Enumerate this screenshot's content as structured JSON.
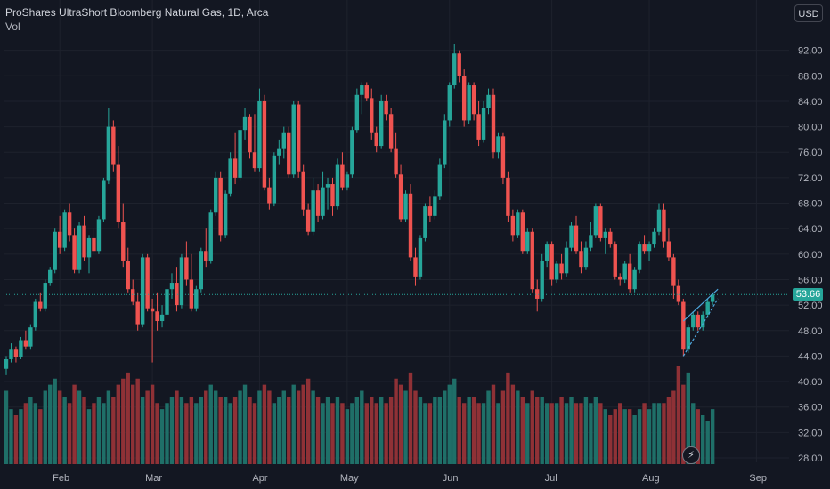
{
  "header": {
    "title": "ProShares UltraShort Bloomberg Natural Gas, 1D, Arca",
    "volume_label": "Vol",
    "currency": "USD"
  },
  "price_badge": "53.66",
  "reset_icon": "lightning-icon",
  "colors": {
    "background": "#131722",
    "up": "#26a69a",
    "down": "#ef5350",
    "up_volume": "#1f6f68",
    "down_volume": "#8f3136",
    "grid": "#1e222d",
    "last_price_line": "#26a69a",
    "trend_lines": "#4ea8de"
  },
  "chart_data": {
    "type": "candlestick",
    "symbol": "ProShares UltraShort Bloomberg Natural Gas",
    "interval": "1D",
    "exchange": "Arca",
    "last_price": 53.66,
    "ylim": [
      26,
      96
    ],
    "y_ticks": [
      "92.00",
      "88.00",
      "84.00",
      "80.00",
      "76.00",
      "72.00",
      "68.00",
      "64.00",
      "60.00",
      "56.00",
      "52.00",
      "48.00",
      "44.00",
      "40.00",
      "36.00",
      "32.00",
      "28.00"
    ],
    "x_ticks": [
      {
        "label": "Feb",
        "i": 11
      },
      {
        "label": "Mar",
        "i": 30
      },
      {
        "label": "Apr",
        "i": 52
      },
      {
        "label": "May",
        "i": 70
      },
      {
        "label": "Jun",
        "i": 91
      },
      {
        "label": "Jul",
        "i": 112
      },
      {
        "label": "Aug",
        "i": 132
      },
      {
        "label": "Sep",
        "i": 154
      }
    ],
    "candles": [
      [
        42,
        44,
        41,
        43.5,
        1.2
      ],
      [
        43.5,
        46,
        43,
        45,
        0.9
      ],
      [
        45,
        45.5,
        43,
        43.8,
        0.8
      ],
      [
        43.8,
        47,
        43.5,
        46.5,
        0.9
      ],
      [
        46.5,
        48,
        45,
        45.5,
        1.0
      ],
      [
        45.5,
        49,
        45,
        48.5,
        1.1
      ],
      [
        48.5,
        53,
        48,
        52.5,
        1.0
      ],
      [
        52.5,
        54,
        51,
        51.5,
        0.9
      ],
      [
        51.5,
        56,
        51,
        55.5,
        1.2
      ],
      [
        55.5,
        58,
        55,
        57.5,
        1.3
      ],
      [
        57.5,
        64,
        57,
        63.5,
        1.4
      ],
      [
        63.5,
        66,
        60,
        61,
        1.2
      ],
      [
        61,
        67,
        60.5,
        66.5,
        1.1
      ],
      [
        66.5,
        68,
        62,
        63,
        1.0
      ],
      [
        63,
        64,
        57,
        57.5,
        1.3
      ],
      [
        57.5,
        65,
        57,
        64.5,
        1.2
      ],
      [
        64.5,
        66,
        59,
        59.5,
        1.1
      ],
      [
        59.5,
        63,
        57,
        62.5,
        0.9
      ],
      [
        62.5,
        64,
        60,
        60.5,
        1.0
      ],
      [
        60.5,
        66,
        60,
        65.5,
        1.1
      ],
      [
        65.5,
        72,
        65,
        71.5,
        1.0
      ],
      [
        71.5,
        83,
        71,
        80,
        1.2
      ],
      [
        80,
        81,
        73,
        74,
        1.1
      ],
      [
        74,
        77,
        64,
        65,
        1.3
      ],
      [
        65,
        68,
        58,
        59,
        1.4
      ],
      [
        59,
        61,
        54,
        54.5,
        1.5
      ],
      [
        54.5,
        56,
        52,
        52.5,
        1.3
      ],
      [
        52.5,
        54,
        48,
        49,
        1.4
      ],
      [
        49,
        60,
        48.5,
        59.5,
        1.1
      ],
      [
        59.5,
        60,
        51,
        51.5,
        1.2
      ],
      [
        51.5,
        53,
        43,
        51,
        1.3
      ],
      [
        51,
        54,
        48,
        49.5,
        1.0
      ],
      [
        49.5,
        52,
        48.5,
        50.5,
        0.9
      ],
      [
        50.5,
        55,
        50,
        54.5,
        1.0
      ],
      [
        54.5,
        57,
        53,
        55.5,
        1.1
      ],
      [
        55.5,
        58,
        51,
        52,
        1.2
      ],
      [
        52,
        60,
        51.5,
        59.5,
        1.1
      ],
      [
        59.5,
        62,
        55,
        56,
        1.0
      ],
      [
        56,
        60,
        51,
        51.5,
        1.1
      ],
      [
        51.5,
        55,
        51,
        54.5,
        1.0
      ],
      [
        54.5,
        61,
        54,
        60.5,
        1.1
      ],
      [
        60.5,
        64,
        58,
        59,
        1.2
      ],
      [
        59,
        67,
        58.5,
        66.5,
        1.3
      ],
      [
        66.5,
        73,
        66,
        72,
        1.2
      ],
      [
        72,
        73,
        62,
        63,
        1.1
      ],
      [
        63,
        70,
        62.5,
        69.5,
        1.1
      ],
      [
        69.5,
        76,
        69,
        75,
        1.0
      ],
      [
        75,
        79,
        71,
        72,
        1.1
      ],
      [
        72,
        80,
        71.5,
        79.5,
        1.2
      ],
      [
        79.5,
        83,
        78,
        81.5,
        1.3
      ],
      [
        81.5,
        82,
        75,
        76,
        1.1
      ],
      [
        76,
        82,
        73,
        73.5,
        1.0
      ],
      [
        73.5,
        86,
        73,
        84,
        1.2
      ],
      [
        84,
        85,
        70,
        70.5,
        1.3
      ],
      [
        70.5,
        72,
        67,
        68,
        1.2
      ],
      [
        68,
        76,
        67.5,
        75.5,
        1.0
      ],
      [
        75.5,
        78,
        74,
        76.5,
        1.1
      ],
      [
        76.5,
        80,
        75,
        79,
        1.2
      ],
      [
        79,
        80,
        72,
        72.5,
        1.1
      ],
      [
        72.5,
        84,
        72,
        83.5,
        1.3
      ],
      [
        83.5,
        84,
        72,
        73,
        1.2
      ],
      [
        73,
        74,
        66,
        67,
        1.3
      ],
      [
        67,
        68,
        63,
        63.5,
        1.4
      ],
      [
        63.5,
        72,
        63,
        70,
        1.2
      ],
      [
        70,
        71,
        65,
        66,
        1.1
      ],
      [
        66,
        73,
        65.5,
        70.5,
        1.0
      ],
      [
        70.5,
        72,
        67,
        71,
        1.1
      ],
      [
        71,
        72,
        66,
        67.5,
        1.0
      ],
      [
        67.5,
        75,
        67,
        74,
        1.1
      ],
      [
        74,
        76,
        70,
        70.5,
        1.0
      ],
      [
        70.5,
        73,
        70,
        72.5,
        0.9
      ],
      [
        72.5,
        80,
        72,
        79.5,
        1.0
      ],
      [
        79.5,
        86,
        79,
        85,
        1.1
      ],
      [
        85,
        87,
        82,
        86.5,
        1.2
      ],
      [
        86.5,
        87,
        84,
        84.5,
        1.0
      ],
      [
        84.5,
        86,
        78,
        79,
        1.1
      ],
      [
        79,
        80,
        76,
        77,
        1.0
      ],
      [
        77,
        85,
        76.5,
        84,
        1.1
      ],
      [
        84,
        85,
        81,
        82,
        1.0
      ],
      [
        82,
        83,
        76,
        76.5,
        1.1
      ],
      [
        76.5,
        79,
        72,
        72.5,
        1.4
      ],
      [
        72.5,
        74,
        65,
        65.5,
        1.3
      ],
      [
        65.5,
        70,
        65,
        69.5,
        1.2
      ],
      [
        69.5,
        71,
        59,
        59.5,
        1.5
      ],
      [
        59.5,
        61,
        55,
        56.5,
        1.2
      ],
      [
        56.5,
        63,
        56,
        62.5,
        1.1
      ],
      [
        62.5,
        68,
        62,
        67.5,
        1.0
      ],
      [
        67.5,
        69,
        65,
        66,
        1.0
      ],
      [
        66,
        70,
        65.5,
        69,
        1.1
      ],
      [
        69,
        75,
        68.5,
        74,
        1.1
      ],
      [
        74,
        82,
        73.5,
        81,
        1.2
      ],
      [
        81,
        87,
        80,
        86.5,
        1.3
      ],
      [
        86.5,
        93,
        86,
        91.5,
        1.4
      ],
      [
        91.5,
        92,
        87,
        88,
        1.1
      ],
      [
        88,
        89,
        80,
        81,
        1.0
      ],
      [
        81,
        87,
        80.5,
        86.5,
        1.1
      ],
      [
        86.5,
        87,
        81,
        82,
        1.1
      ],
      [
        82,
        84,
        77,
        78,
        1.0
      ],
      [
        78,
        84,
        77.5,
        83,
        1.0
      ],
      [
        83,
        86,
        82,
        85,
        1.2
      ],
      [
        85,
        86,
        75,
        76,
        1.3
      ],
      [
        76,
        79,
        75,
        78.5,
        1.0
      ],
      [
        78.5,
        79,
        71,
        72,
        1.2
      ],
      [
        72,
        73,
        65,
        66,
        1.5
      ],
      [
        66,
        67,
        62,
        63,
        1.3
      ],
      [
        63,
        67,
        62.5,
        66.5,
        1.2
      ],
      [
        66.5,
        67,
        60,
        60.5,
        1.1
      ],
      [
        60.5,
        64,
        60,
        63.5,
        1.0
      ],
      [
        63.5,
        64,
        54,
        54.5,
        1.2
      ],
      [
        54.5,
        56,
        51,
        53,
        1.1
      ],
      [
        53,
        60,
        52.5,
        59,
        1.1
      ],
      [
        59,
        62,
        58,
        61.5,
        1.0
      ],
      [
        61.5,
        62,
        55,
        56,
        1.0
      ],
      [
        56,
        59,
        55.5,
        58.5,
        1.0
      ],
      [
        58.5,
        60,
        56,
        57,
        1.1
      ],
      [
        57,
        62,
        56.5,
        61,
        1.0
      ],
      [
        61,
        65,
        60.5,
        64.5,
        1.1
      ],
      [
        64.5,
        66,
        60,
        60.5,
        1.0
      ],
      [
        60.5,
        62,
        57,
        58,
        1.0
      ],
      [
        58,
        62,
        57.5,
        61,
        1.1
      ],
      [
        61,
        65,
        60.5,
        63,
        1.0
      ],
      [
        63,
        68,
        62.5,
        67.5,
        1.1
      ],
      [
        67.5,
        68,
        62,
        62.5,
        1.0
      ],
      [
        62.5,
        64,
        60,
        63.5,
        0.9
      ],
      [
        63.5,
        64,
        61,
        61.5,
        0.8
      ],
      [
        61.5,
        62,
        56,
        56.5,
        0.9
      ],
      [
        56.5,
        57,
        55,
        56,
        1.0
      ],
      [
        56,
        59,
        55.5,
        58.5,
        0.9
      ],
      [
        58.5,
        60,
        54,
        54.5,
        0.9
      ],
      [
        54.5,
        58,
        54,
        57.5,
        0.8
      ],
      [
        57.5,
        62,
        57,
        61.5,
        0.9
      ],
      [
        61.5,
        63,
        60,
        60.5,
        1.0
      ],
      [
        60.5,
        62,
        59,
        61.5,
        0.9
      ],
      [
        61.5,
        64,
        61,
        63.5,
        1.0
      ],
      [
        63.5,
        68,
        63,
        67,
        1.0
      ],
      [
        67,
        68,
        61,
        62,
        1.0
      ],
      [
        62,
        64,
        59,
        59.5,
        1.1
      ],
      [
        59.5,
        60,
        53,
        55,
        1.2
      ],
      [
        55,
        56,
        52,
        52.5,
        1.6
      ],
      [
        52.5,
        53,
        44,
        45,
        1.3
      ],
      [
        45,
        49,
        44.5,
        48.5,
        1.5
      ],
      [
        48.5,
        51,
        48,
        50.5,
        1.0
      ],
      [
        50.5,
        51,
        48,
        48.5,
        0.9
      ],
      [
        48.5,
        51,
        48,
        50.5,
        0.8
      ],
      [
        50.5,
        53,
        50,
        52.5,
        0.7
      ],
      [
        52.5,
        54,
        52,
        53.66,
        0.9
      ]
    ],
    "last_candle_volume_hint": "volume bars drawn in relative units"
  }
}
